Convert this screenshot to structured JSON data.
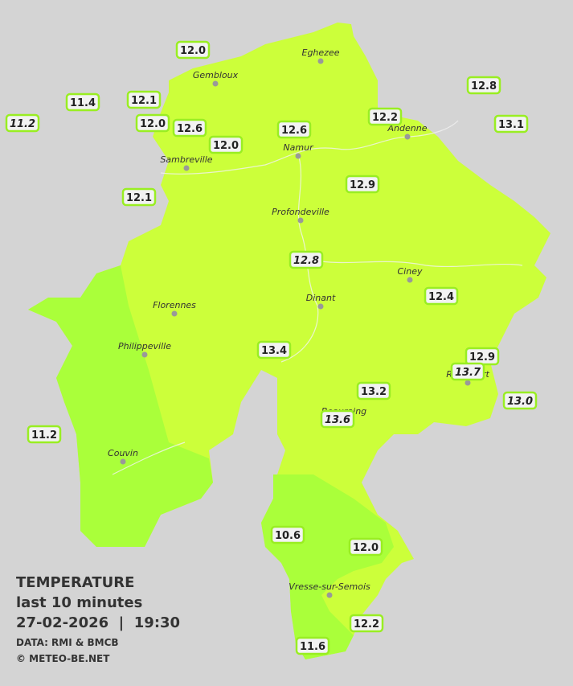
{
  "stations": [
    {
      "value": "12.0"
    },
    {
      "value": "11.4"
    },
    {
      "value": "11.2",
      "italic": true
    },
    {
      "value": "12.1"
    },
    {
      "value": "12.0"
    },
    {
      "value": "12.6"
    },
    {
      "value": "12.0"
    },
    {
      "value": "12.6"
    },
    {
      "value": "12.2"
    },
    {
      "value": "12.8"
    },
    {
      "value": "13.1"
    },
    {
      "value": "12.1"
    },
    {
      "value": "12.9"
    },
    {
      "value": "12.8",
      "italic": true
    },
    {
      "value": "12.4"
    },
    {
      "value": "13.4"
    },
    {
      "value": "12.9"
    },
    {
      "value": "13.7",
      "italic": true
    },
    {
      "value": "13.2"
    },
    {
      "value": "13.0",
      "italic": true
    },
    {
      "value": "13.6",
      "italic": true
    },
    {
      "value": "11.2"
    },
    {
      "value": "10.6"
    },
    {
      "value": "12.0"
    },
    {
      "value": "12.2"
    },
    {
      "value": "11.6"
    }
  ],
  "places": [
    {
      "name": "Eghezee"
    },
    {
      "name": "Gembloux"
    },
    {
      "name": "Andenne"
    },
    {
      "name": "Namur"
    },
    {
      "name": "Sambreville"
    },
    {
      "name": "Profondeville"
    },
    {
      "name": "Ciney"
    },
    {
      "name": "Dinant"
    },
    {
      "name": "Florennes"
    },
    {
      "name": "Philippeville"
    },
    {
      "name": "Rochefort"
    },
    {
      "name": "Beauraing"
    },
    {
      "name": "Couvin"
    },
    {
      "name": "Vresse-sur-Semois"
    }
  ],
  "legend": {
    "title": "TEMPERATURE",
    "subtitle": "last 10 minutes",
    "datetime": "27-02-2026  |  19:30",
    "source": "DATA: RMI & BMCB",
    "copyright": "© METEO-BE.NET"
  }
}
